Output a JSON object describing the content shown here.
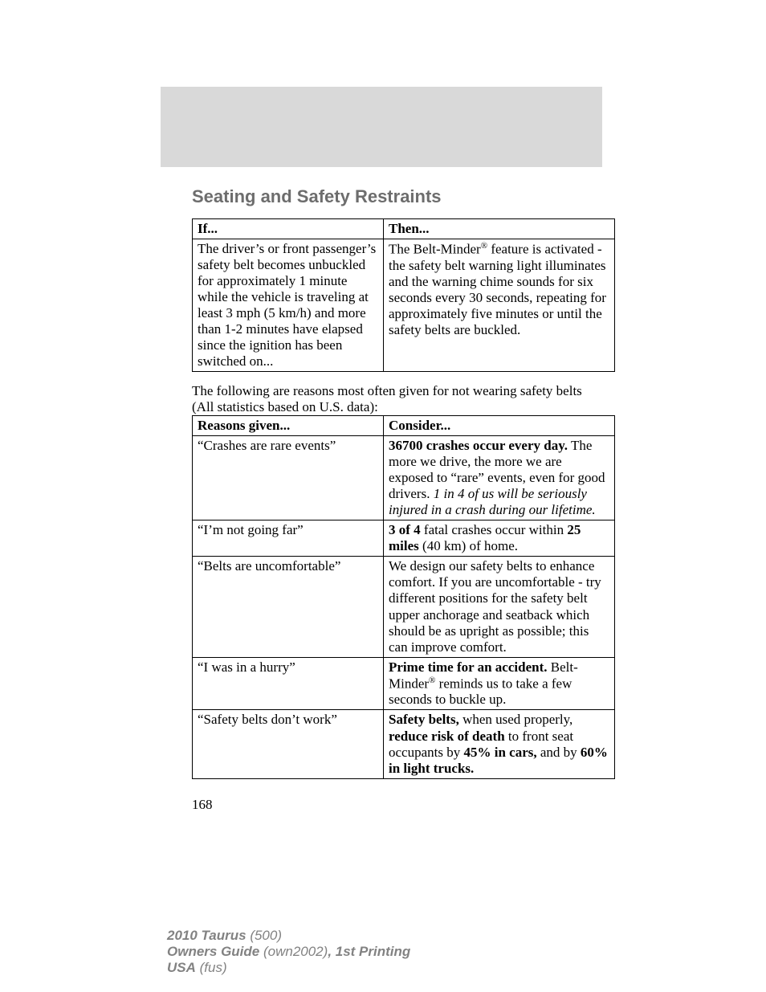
{
  "heading": "Seating and Safety Restraints",
  "table1": {
    "header": [
      "If...",
      "Then..."
    ],
    "col1": "The driver’s or front passenger’s safety belt becomes unbuckled for approximately 1 minute while the vehicle is traveling at least 3 mph (5 km/h) and more than 1-2 minutes have elapsed since the ignition has been switched on...",
    "col2": {
      "pre": "The Belt-Minder",
      "sup": "®",
      "post": " feature is activated - the safety belt warning light illuminates and the warning chime sounds for six seconds every 30 seconds, repeating for approximately five minutes or until the safety belts are buckled."
    }
  },
  "para": "The following are reasons most often given for not wearing safety belts (All statistics based on U.S. data):",
  "table2": {
    "header": [
      "Reasons given...",
      "Consider..."
    ],
    "rows": [
      {
        "r": "“Crashes are rare events”",
        "c": {
          "spans": [
            {
              "t": "36700 crashes occur every day.",
              "cls": "b"
            },
            {
              "t": " The more we drive, the more we are exposed to “rare” events, even for good drivers. "
            },
            {
              "t": "1 in 4 of us will be seriously injured in a crash during our lifetime.",
              "cls": "i"
            }
          ]
        }
      },
      {
        "r": "“I’m not going far”",
        "c": {
          "spans": [
            {
              "t": "3 of 4",
              "cls": "b"
            },
            {
              "t": " fatal crashes occur within "
            },
            {
              "t": "25 miles",
              "cls": "b"
            },
            {
              "t": " (40 km) of home."
            }
          ]
        }
      },
      {
        "r": "“Belts are uncomfortable”",
        "c": {
          "spans": [
            {
              "t": "We design our safety belts to enhance comfort. If you are uncomfortable - try different positions for the safety belt upper anchorage and seatback which should be as upright as possible; this can improve comfort."
            }
          ]
        }
      },
      {
        "r": "“I was in a hurry”",
        "c": {
          "spans": [
            {
              "t": "Prime time for an accident.",
              "cls": "b"
            },
            {
              "t": " Belt-Minder"
            },
            {
              "t": "®",
              "cls": "sup"
            },
            {
              "t": " reminds us to take a few seconds to buckle up."
            }
          ]
        }
      },
      {
        "r": "“Safety belts don’t work”",
        "c": {
          "spans": [
            {
              "t": "Safety belts,",
              "cls": "b"
            },
            {
              "t": " when used properly, "
            },
            {
              "t": "reduce risk of death",
              "cls": "b"
            },
            {
              "t": " to front seat occupants by "
            },
            {
              "t": "45% in cars,",
              "cls": "b"
            },
            {
              "t": " and by "
            },
            {
              "t": "60% in light trucks.",
              "cls": "b"
            }
          ]
        }
      }
    ]
  },
  "pagenum": "168",
  "footer": {
    "l1a": "2010 Taurus",
    "l1b": " (500)",
    "l2a": "Owners Guide",
    "l2b": " (own2002)",
    "l2c": ", 1st Printing",
    "l3a": "USA",
    "l3b": " (fus)"
  }
}
